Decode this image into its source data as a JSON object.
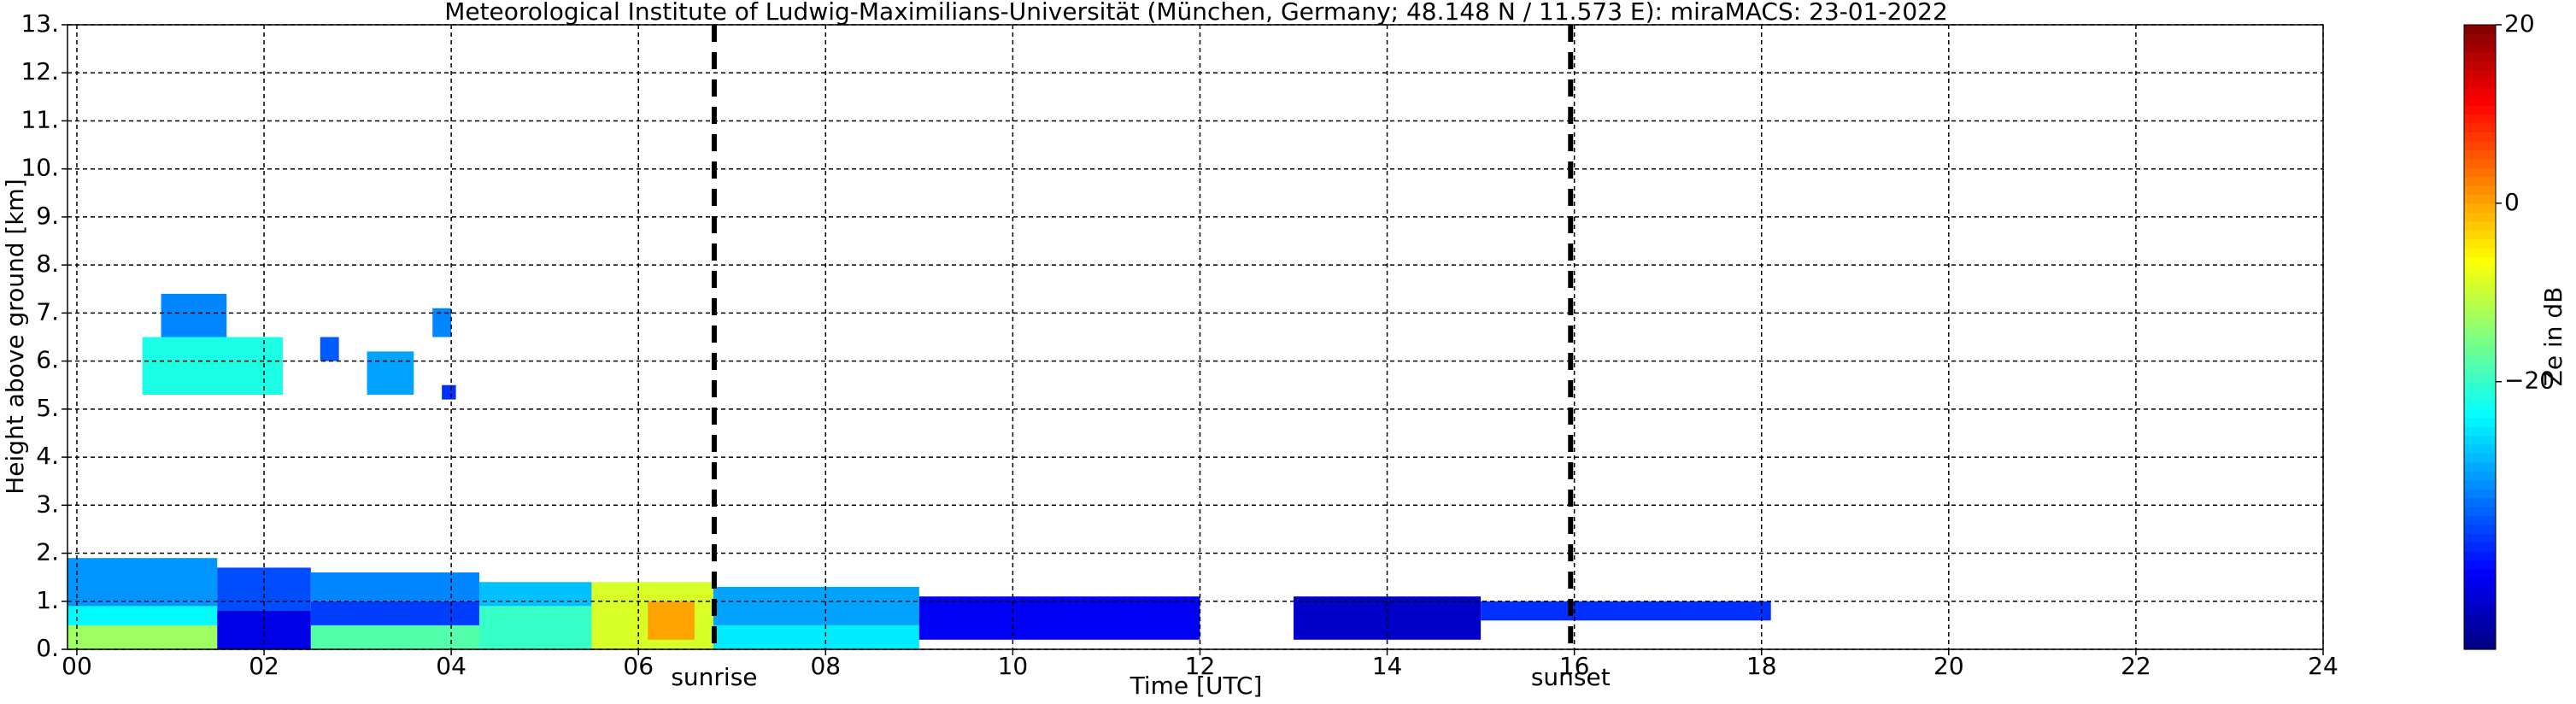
{
  "chart_data": {
    "type": "heatmap",
    "title": "Meteorological Institute of Ludwig-Maximilians-Universität (München, Germany; 48.148 N / 11.573 E):    miraMACS: 23-01-2022",
    "x_label": "Time [UTC]",
    "y_label": "Height above ground [km]",
    "colorbar_label": "Ze in dB",
    "xlim": [
      -0.1,
      24
    ],
    "ylim": [
      0,
      13
    ],
    "clim": [
      -50,
      20
    ],
    "grid": true,
    "xticks": [
      {
        "value": 0,
        "label": "00"
      },
      {
        "value": 2,
        "label": "02"
      },
      {
        "value": 4,
        "label": "04"
      },
      {
        "value": 6,
        "label": "06"
      },
      {
        "value": 8,
        "label": "08"
      },
      {
        "value": 10,
        "label": "10"
      },
      {
        "value": 12,
        "label": "12"
      },
      {
        "value": 14,
        "label": "14"
      },
      {
        "value": 16,
        "label": "16"
      },
      {
        "value": 18,
        "label": "18"
      },
      {
        "value": 20,
        "label": "20"
      },
      {
        "value": 22,
        "label": "22"
      },
      {
        "value": 24,
        "label": "24"
      }
    ],
    "yticks": [
      {
        "value": 0,
        "label": "0."
      },
      {
        "value": 1,
        "label": "1."
      },
      {
        "value": 2,
        "label": "2."
      },
      {
        "value": 3,
        "label": "3."
      },
      {
        "value": 4,
        "label": "4."
      },
      {
        "value": 5,
        "label": "5."
      },
      {
        "value": 6,
        "label": "6."
      },
      {
        "value": 7,
        "label": "7."
      },
      {
        "value": 8,
        "label": "8."
      },
      {
        "value": 9,
        "label": "9."
      },
      {
        "value": 10,
        "label": "10."
      },
      {
        "value": 11,
        "label": "11."
      },
      {
        "value": 12,
        "label": "12."
      },
      {
        "value": 13,
        "label": "13."
      }
    ],
    "cticks": [
      {
        "value": 20,
        "label": "20"
      },
      {
        "value": 0,
        "label": "0"
      },
      {
        "value": -20,
        "label": "−20"
      }
    ],
    "markers": [
      {
        "label": "sunrise",
        "x": 6.81
      },
      {
        "label": "sunset",
        "x": 15.96
      }
    ],
    "cells": [
      {
        "t": [
          -0.1,
          1.5
        ],
        "h": [
          0,
          0.5
        ],
        "ze": -13
      },
      {
        "t": [
          -0.1,
          1.5
        ],
        "h": [
          0.5,
          0.9
        ],
        "ze": -24
      },
      {
        "t": [
          -0.1,
          1.5
        ],
        "h": [
          0.9,
          1.9
        ],
        "ze": -31
      },
      {
        "t": [
          1.5,
          2.5
        ],
        "h": [
          0,
          0.8
        ],
        "ze": -43
      },
      {
        "t": [
          1.5,
          2.5
        ],
        "h": [
          0.8,
          1.7
        ],
        "ze": -36
      },
      {
        "t": [
          2.5,
          4.3
        ],
        "h": [
          0,
          0.5
        ],
        "ze": -18
      },
      {
        "t": [
          2.5,
          4.3
        ],
        "h": [
          0.5,
          1.0
        ],
        "ze": -37
      },
      {
        "t": [
          2.5,
          4.3
        ],
        "h": [
          1.0,
          1.6
        ],
        "ze": -32
      },
      {
        "t": [
          4.3,
          5.5
        ],
        "h": [
          0,
          0.9
        ],
        "ze": -20
      },
      {
        "t": [
          4.3,
          5.5
        ],
        "h": [
          0.9,
          1.4
        ],
        "ze": -28
      },
      {
        "t": [
          5.5,
          6.8
        ],
        "h": [
          0,
          1.4
        ],
        "ze": -9
      },
      {
        "t": [
          6.1,
          6.6
        ],
        "h": [
          0.2,
          1.0
        ],
        "ze": 0
      },
      {
        "t": [
          6.8,
          9.0
        ],
        "h": [
          0,
          0.5
        ],
        "ze": -25
      },
      {
        "t": [
          6.8,
          9.0
        ],
        "h": [
          0.5,
          1.3
        ],
        "ze": -30
      },
      {
        "t": [
          9.0,
          12.0
        ],
        "h": [
          0.2,
          1.1
        ],
        "ze": -42
      },
      {
        "t": [
          13.0,
          15.0
        ],
        "h": [
          0.2,
          1.1
        ],
        "ze": -45
      },
      {
        "t": [
          15.0,
          18.1
        ],
        "h": [
          0.6,
          1.0
        ],
        "ze": -38
      },
      {
        "t": [
          0.7,
          2.2
        ],
        "h": [
          5.3,
          6.5
        ],
        "ze": -22
      },
      {
        "t": [
          0.9,
          1.6
        ],
        "h": [
          6.5,
          7.4
        ],
        "ze": -32
      },
      {
        "t": [
          2.6,
          2.8
        ],
        "h": [
          6.0,
          6.5
        ],
        "ze": -35
      },
      {
        "t": [
          3.1,
          3.6
        ],
        "h": [
          5.3,
          6.2
        ],
        "ze": -30
      },
      {
        "t": [
          3.8,
          4.0
        ],
        "h": [
          6.5,
          7.1
        ],
        "ze": -32
      },
      {
        "t": [
          3.9,
          4.05
        ],
        "h": [
          5.2,
          5.5
        ],
        "ze": -38
      }
    ]
  }
}
